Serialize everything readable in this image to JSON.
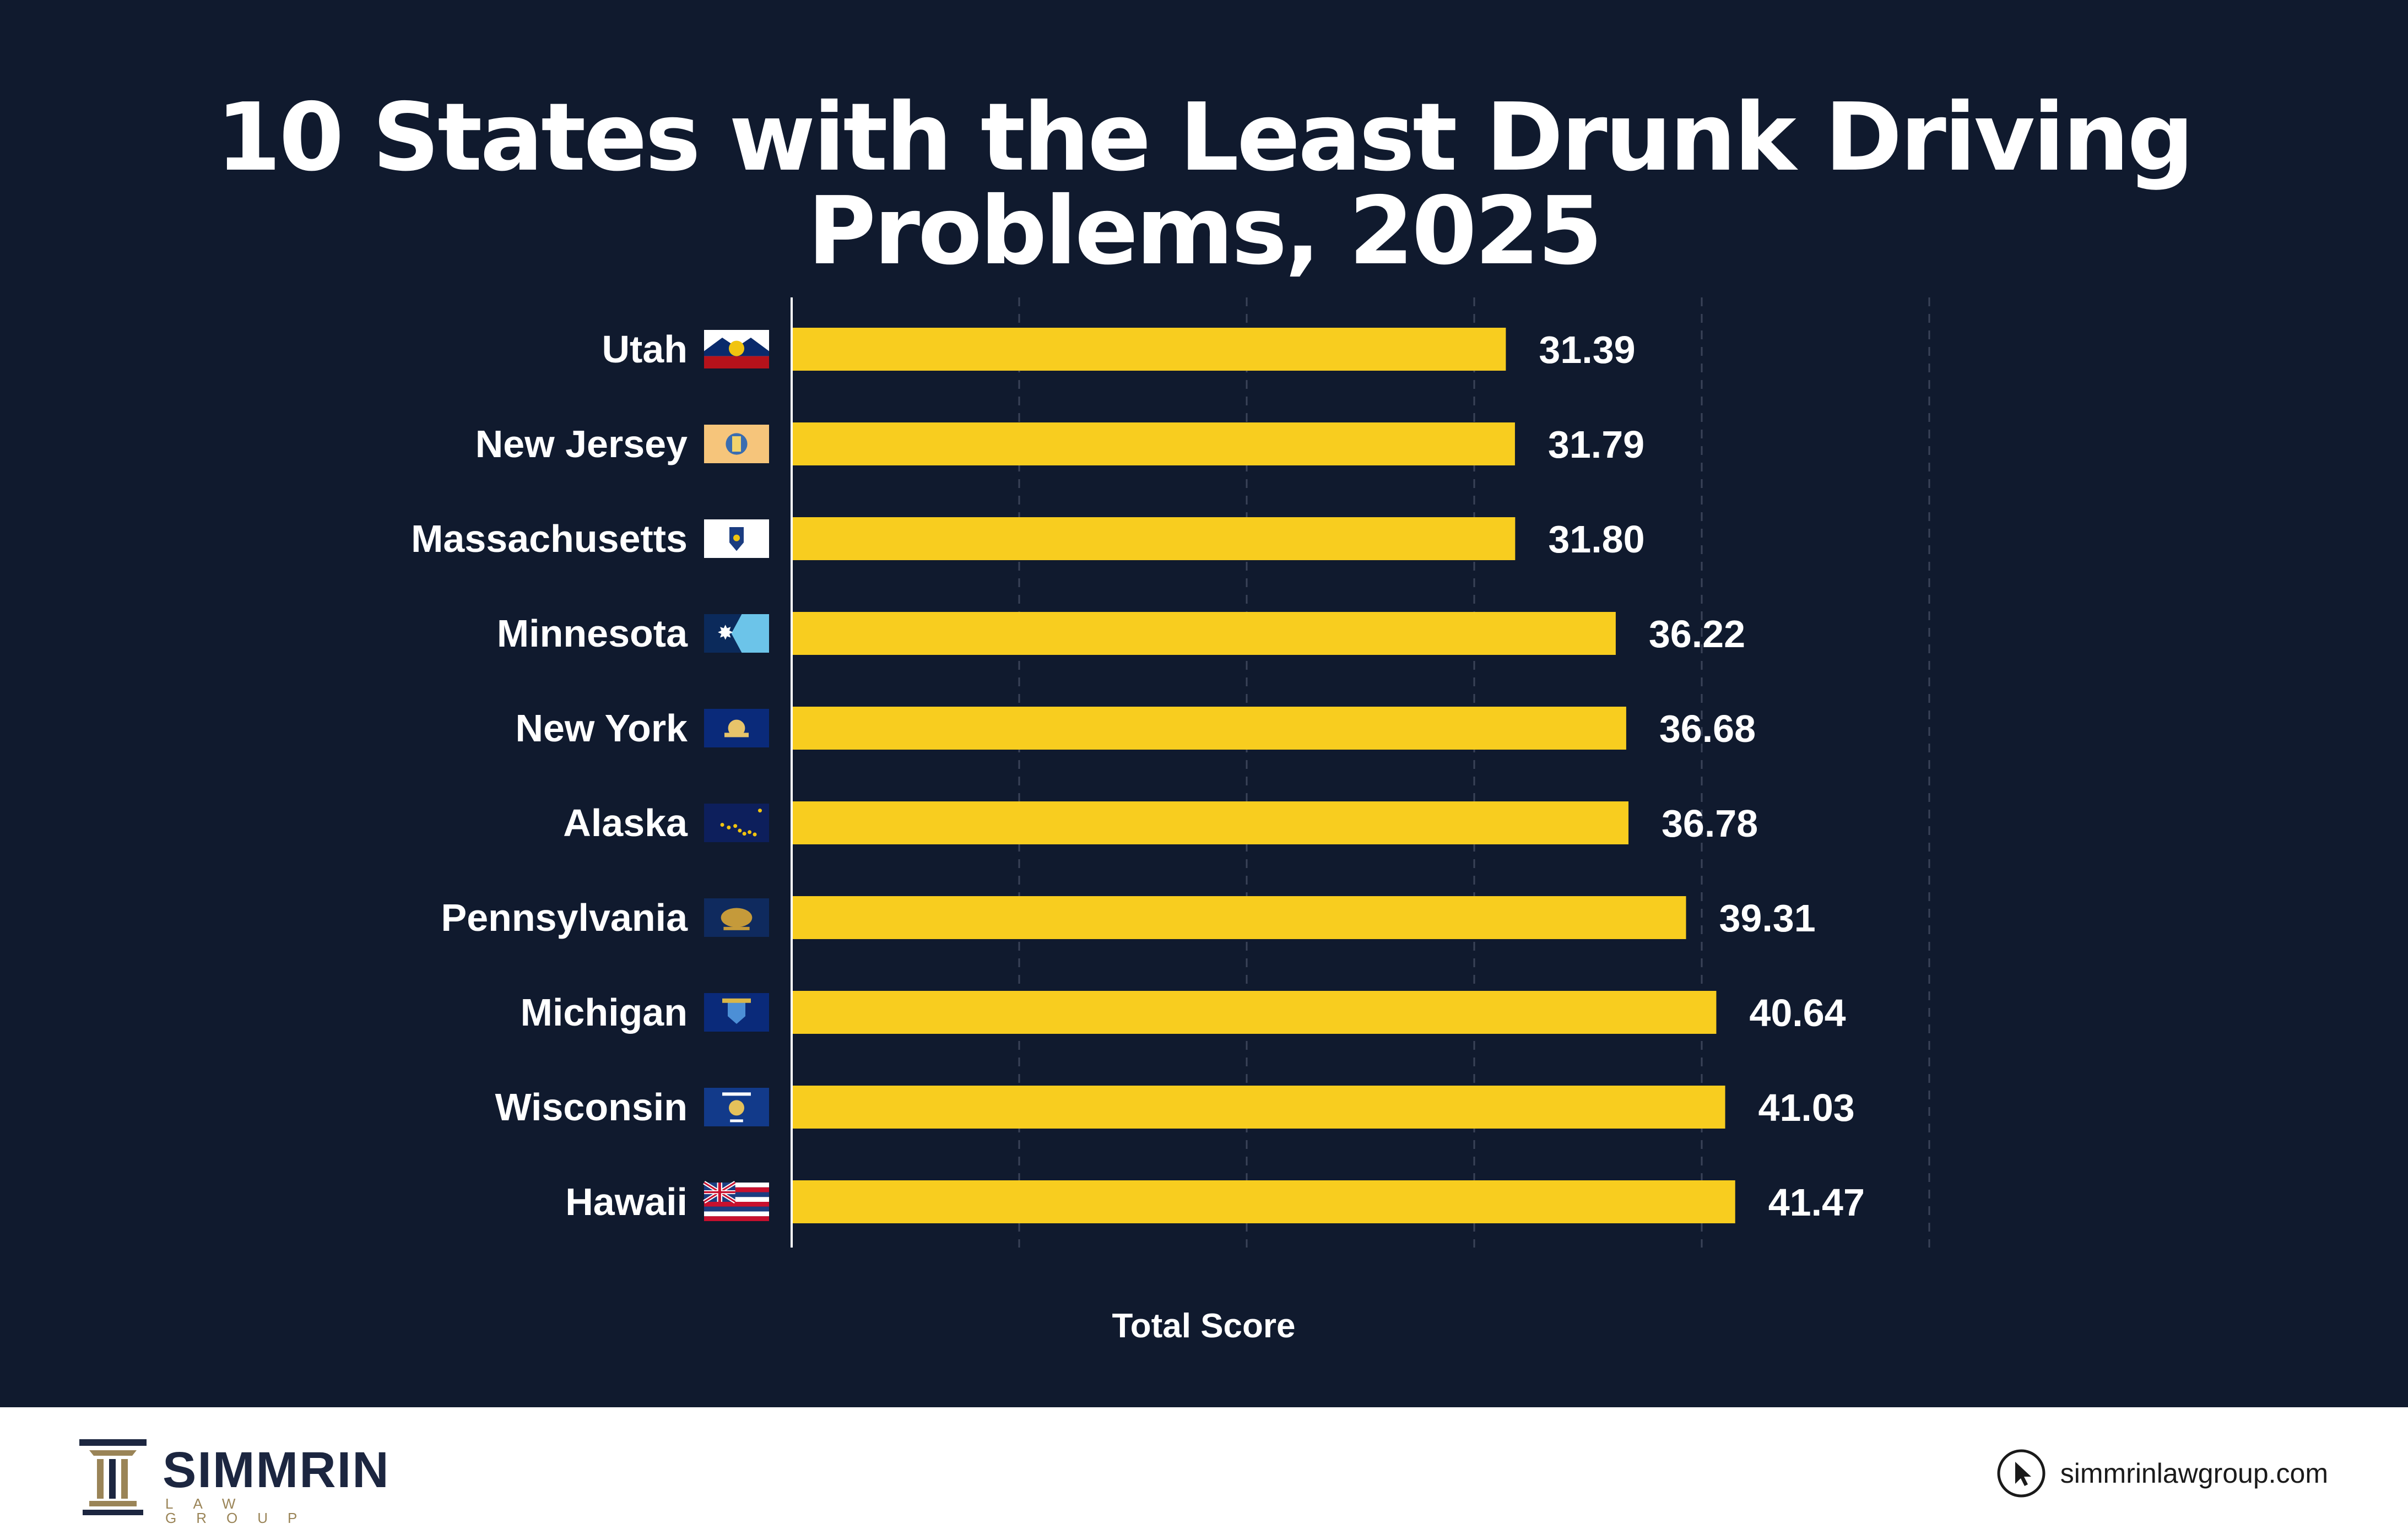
{
  "title": "10 States with the Least Drunk Driving Problems, 2025",
  "colors": {
    "background": "#101a2e",
    "bar": "#f8cd1f",
    "text": "#ffffff",
    "grid": "#3a4358",
    "footer_bg": "#ffffff",
    "brand_navy": "#1c2640",
    "brand_gold": "#9a8457"
  },
  "chart_data": {
    "type": "bar",
    "orientation": "horizontal",
    "title": "10 States with the Least Drunk Driving Problems, 2025",
    "xlabel": "Total Score",
    "ylabel": "",
    "categories": [
      "Utah",
      "New Jersey",
      "Massachusetts",
      "Minnesota",
      "New York",
      "Alaska",
      "Pennsylvania",
      "Michigan",
      "Wisconsin",
      "Hawaii"
    ],
    "values": [
      31.39,
      31.79,
      31.8,
      36.22,
      36.68,
      36.78,
      39.31,
      40.64,
      41.03,
      41.47
    ],
    "value_labels": [
      "31.39",
      "31.79",
      "31.80",
      "36.22",
      "36.68",
      "36.78",
      "39.31",
      "40.64",
      "41.03",
      "41.47"
    ],
    "flag_icons": [
      "utah-flag-icon",
      "new-jersey-flag-icon",
      "massachusetts-flag-icon",
      "minnesota-flag-icon",
      "new-york-flag-icon",
      "alaska-flag-icon",
      "pennsylvania-flag-icon",
      "michigan-flag-icon",
      "wisconsin-flag-icon",
      "hawaii-flag-icon"
    ],
    "xlim": [
      0,
      50
    ],
    "gridlines": [
      10,
      20,
      30,
      40,
      50
    ],
    "grid": "dashed vertical",
    "legend": "none"
  },
  "footer": {
    "logo_name": "SIMMRIN",
    "logo_subtitle": "LAW GROUP",
    "website": "simmrinlawgroup.com",
    "website_icon": "cursor-icon"
  }
}
